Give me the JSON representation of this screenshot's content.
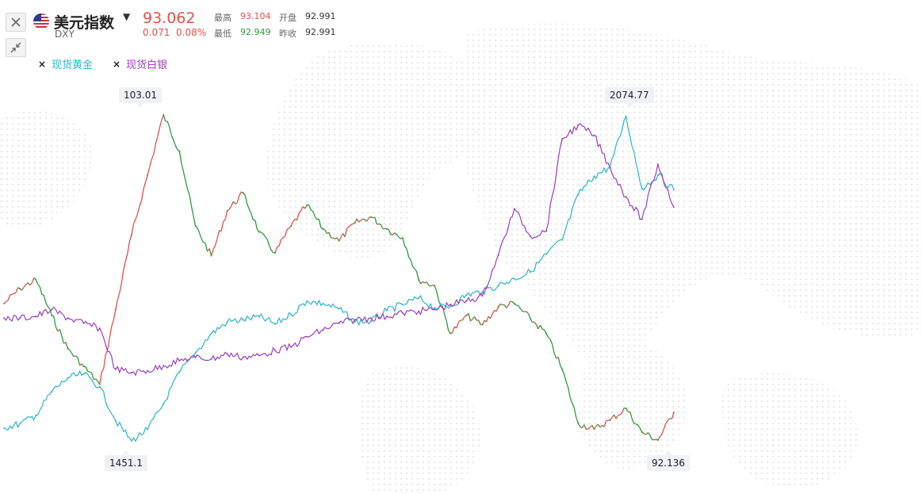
{
  "header": {
    "title": "美元指数",
    "code": "DXY",
    "price": "93.062",
    "change": "0.071",
    "change_pct": "0.08%",
    "stats": {
      "high_label": "最高",
      "high": "93.104",
      "open_label": "开盘",
      "open": "92.991",
      "low_label": "最低",
      "low": "92.949",
      "prev_close_label": "昨收",
      "prev_close": "92.991"
    },
    "dropdown_icon": "caret-down-icon"
  },
  "toolbar": {
    "close_icon": "close-icon",
    "shrink_icon": "shrink-icon"
  },
  "legend": [
    {
      "label": "现货黄金",
      "color": "#2ab6c6",
      "remove_icon": "×"
    },
    {
      "label": "现货白银",
      "color": "#9b3fbf",
      "remove_icon": "×"
    }
  ],
  "callouts": {
    "dxy_max": "103.01",
    "gold_max": "2074.77",
    "gold_min": "1451.1",
    "dxy_min": "92.136"
  },
  "colors": {
    "up": "#e5504b",
    "down": "#2e9a3c",
    "gold": "#2ab6c6",
    "silver": "#9b3fbf"
  },
  "chart_data": {
    "type": "line",
    "series": [
      {
        "name": "美元指数",
        "values": [
          96.7,
          97.2,
          97.5,
          96.3,
          95.2,
          94.6,
          94.0,
          96.5,
          99.0,
          101.0,
          103.01,
          101.8,
          99.3,
          98.3,
          99.8,
          100.4,
          99.1,
          98.4,
          99.3,
          100.0,
          99.2,
          98.8,
          99.4,
          99.6,
          99.2,
          98.9,
          97.5,
          97.3,
          95.7,
          96.3,
          96.0,
          96.6,
          96.7,
          96.2,
          95.7,
          94.5,
          92.7,
          92.5,
          92.8,
          93.2,
          92.4,
          92.136,
          93.062
        ]
      },
      {
        "name": "现货黄金",
        "values": [
          1476,
          1484,
          1500,
          1546,
          1572,
          1580,
          1555,
          1490,
          1451.1,
          1473,
          1522,
          1583,
          1620,
          1657,
          1680,
          1684,
          1690,
          1676,
          1694,
          1720,
          1715,
          1705,
          1680,
          1681,
          1702,
          1713,
          1726,
          1707,
          1710,
          1732,
          1738,
          1750,
          1763,
          1776,
          1810,
          1838,
          1925,
          1960,
          1978,
          2074.77,
          1936,
          1962,
          1934
        ]
      },
      {
        "name": "现货白银",
        "values": [
          17.8,
          17.8,
          17.9,
          18.3,
          17.8,
          17.5,
          17.2,
          14.8,
          14.6,
          14.7,
          15.0,
          15.3,
          15.5,
          15.4,
          15.7,
          15.5,
          15.6,
          15.9,
          16.1,
          16.7,
          17.1,
          17.5,
          17.7,
          17.8,
          17.9,
          18.1,
          18.2,
          18.3,
          18.6,
          18.8,
          19.1,
          21.5,
          24.2,
          22.6,
          22.9,
          28.3,
          29.1,
          28.5,
          26.6,
          24.9,
          23.6,
          26.8,
          24.3
        ]
      }
    ]
  }
}
